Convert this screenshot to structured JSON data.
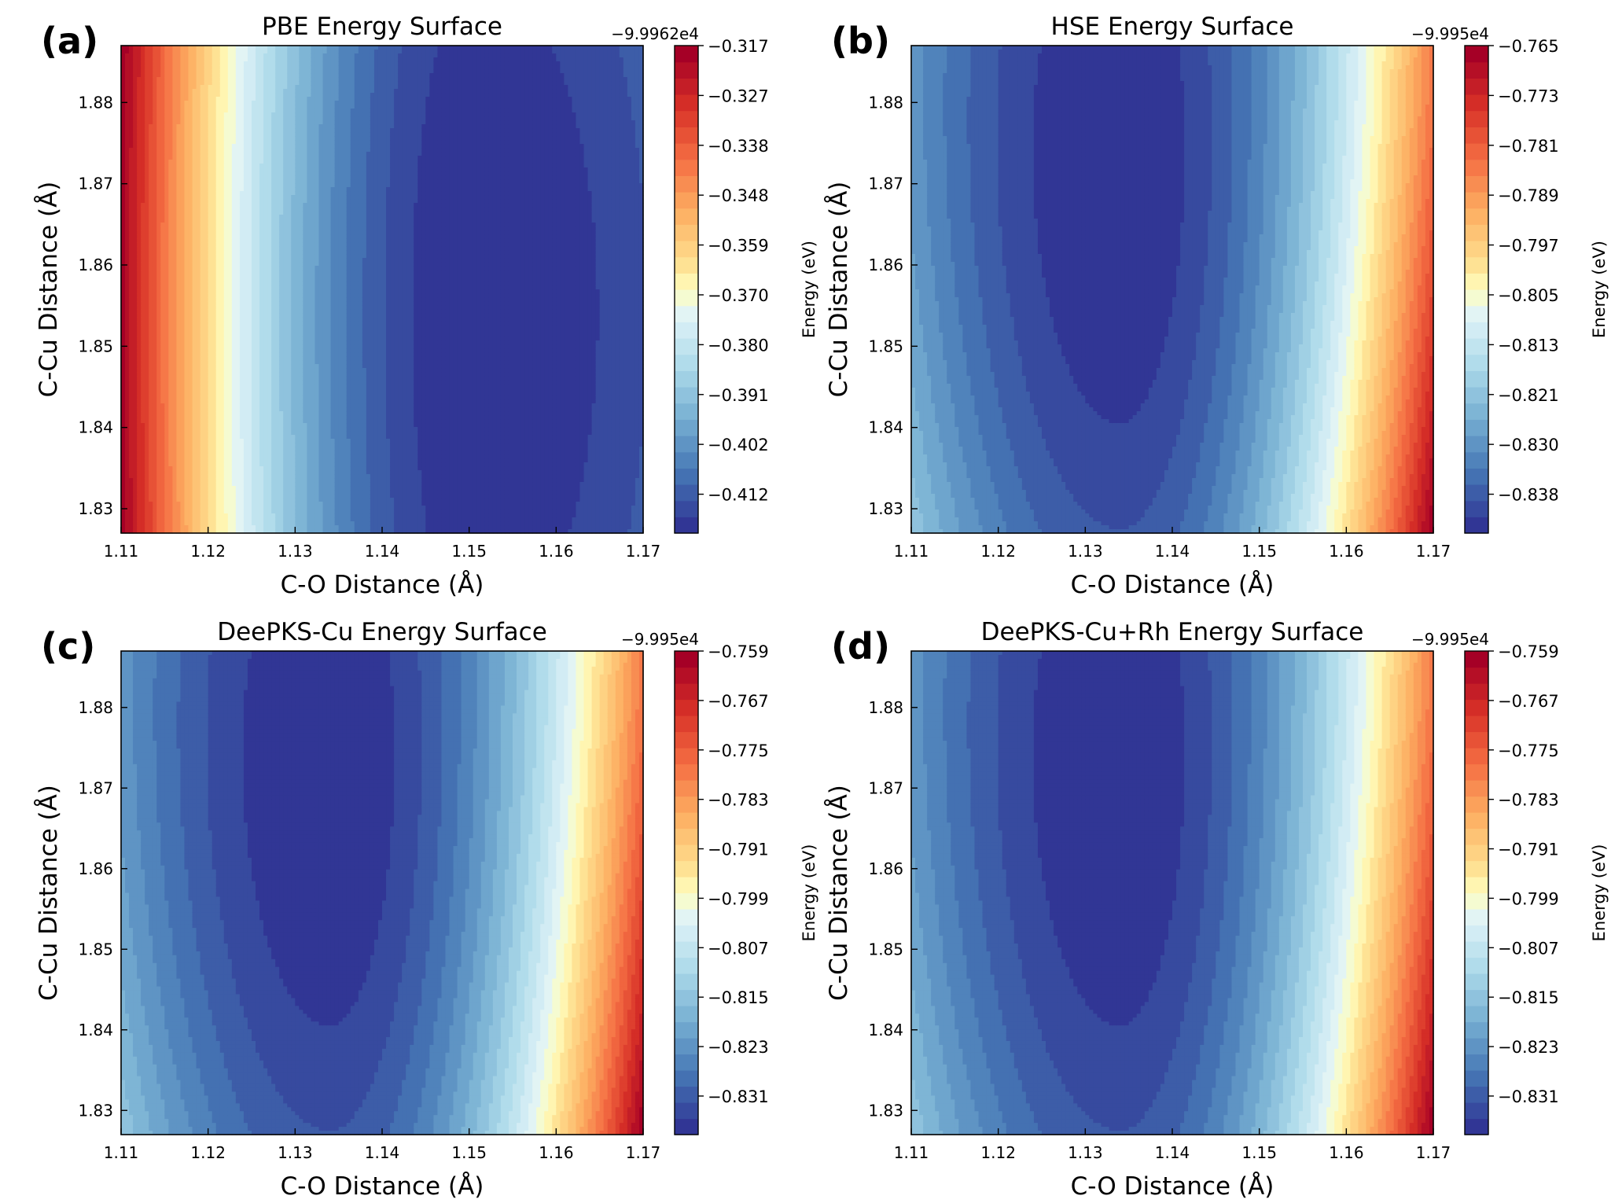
{
  "chart_data": [
    {
      "type": "heatmap",
      "panel_label": "(a)",
      "title": "PBE Energy Surface",
      "xlabel": "C-O Distance (Å)",
      "ylabel": "C-Cu Distance (Å)",
      "xlim": [
        1.11,
        1.17
      ],
      "ylim": [
        1.827,
        1.887
      ],
      "x_ticks": [
        "1.11",
        "1.12",
        "1.13",
        "1.14",
        "1.15",
        "1.16",
        "1.17"
      ],
      "y_ticks": [
        "1.83",
        "1.84",
        "1.85",
        "1.86",
        "1.87",
        "1.88"
      ],
      "colorbar": {
        "label": "Energy (eV)",
        "offset_text": "−9.9962e4",
        "ticks": [
          "−0.317",
          "−0.327",
          "−0.338",
          "−0.348",
          "−0.359",
          "−0.370",
          "−0.380",
          "−0.391",
          "−0.402",
          "−0.412"
        ],
        "colormap": "RdYlBu_r",
        "min_fraction": 0.0,
        "max_fraction": 1.0
      },
      "surface": {
        "x_min": 1.151,
        "y_min": 1.854,
        "y_stretch": 7.5,
        "skew": 0.0,
        "left_gradient": 1.0,
        "right_gradient": 0.3,
        "levels": 30
      }
    },
    {
      "type": "heatmap",
      "panel_label": "(b)",
      "title": "HSE Energy Surface",
      "xlabel": "C-O Distance (Å)",
      "ylabel": "C-Cu Distance (Å)",
      "xlim": [
        1.11,
        1.17
      ],
      "ylim": [
        1.827,
        1.887
      ],
      "x_ticks": [
        "1.11",
        "1.12",
        "1.13",
        "1.14",
        "1.15",
        "1.16",
        "1.17"
      ],
      "y_ticks": [
        "1.83",
        "1.84",
        "1.85",
        "1.86",
        "1.87",
        "1.88"
      ],
      "colorbar": {
        "label": "Energy (eV)",
        "offset_text": "−9.995e4",
        "ticks": [
          "−0.765",
          "−0.773",
          "−0.781",
          "−0.789",
          "−0.797",
          "−0.805",
          "−0.813",
          "−0.821",
          "−0.830",
          "−0.838"
        ],
        "colormap": "RdYlBu_r"
      },
      "surface": {
        "x_min": 1.134,
        "y_min": 1.872,
        "y_stretch": 4.5,
        "skew": 0.12,
        "left_gradient": 0.55,
        "right_gradient": 1.0,
        "levels": 30
      }
    },
    {
      "type": "heatmap",
      "panel_label": "(c)",
      "title": "DeePKS-Cu Energy Surface",
      "xlabel": "C-O Distance (Å)",
      "ylabel": "C-Cu Distance (Å)",
      "xlim": [
        1.11,
        1.17
      ],
      "ylim": [
        1.827,
        1.887
      ],
      "x_ticks": [
        "1.11",
        "1.12",
        "1.13",
        "1.14",
        "1.15",
        "1.16",
        "1.17"
      ],
      "y_ticks": [
        "1.83",
        "1.84",
        "1.85",
        "1.86",
        "1.87",
        "1.88"
      ],
      "colorbar": {
        "label": "Energy (eV)",
        "offset_text": "−9.995e4",
        "ticks": [
          "−0.759",
          "−0.767",
          "−0.775",
          "−0.783",
          "−0.791",
          "−0.799",
          "−0.807",
          "−0.815",
          "−0.823",
          "−0.831"
        ],
        "colormap": "RdYlBu_r"
      },
      "surface": {
        "x_min": 1.134,
        "y_min": 1.872,
        "y_stretch": 4.5,
        "skew": 0.12,
        "left_gradient": 0.55,
        "right_gradient": 1.0,
        "levels": 30
      }
    },
    {
      "type": "heatmap",
      "panel_label": "(d)",
      "title": "DeePKS-Cu+Rh Energy Surface",
      "xlabel": "C-O Distance (Å)",
      "ylabel": "C-Cu Distance (Å)",
      "xlim": [
        1.11,
        1.17
      ],
      "ylim": [
        1.827,
        1.887
      ],
      "x_ticks": [
        "1.11",
        "1.12",
        "1.13",
        "1.14",
        "1.15",
        "1.16",
        "1.17"
      ],
      "y_ticks": [
        "1.83",
        "1.84",
        "1.85",
        "1.86",
        "1.87",
        "1.88"
      ],
      "colorbar": {
        "label": "Energy (eV)",
        "offset_text": "−9.995e4",
        "ticks": [
          "−0.759",
          "−0.767",
          "−0.775",
          "−0.783",
          "−0.791",
          "−0.799",
          "−0.807",
          "−0.815",
          "−0.823",
          "−0.831"
        ],
        "colormap": "RdYlBu_r"
      },
      "surface": {
        "x_min": 1.134,
        "y_min": 1.872,
        "y_stretch": 4.5,
        "skew": 0.12,
        "left_gradient": 0.55,
        "right_gradient": 1.0,
        "levels": 30
      }
    }
  ]
}
